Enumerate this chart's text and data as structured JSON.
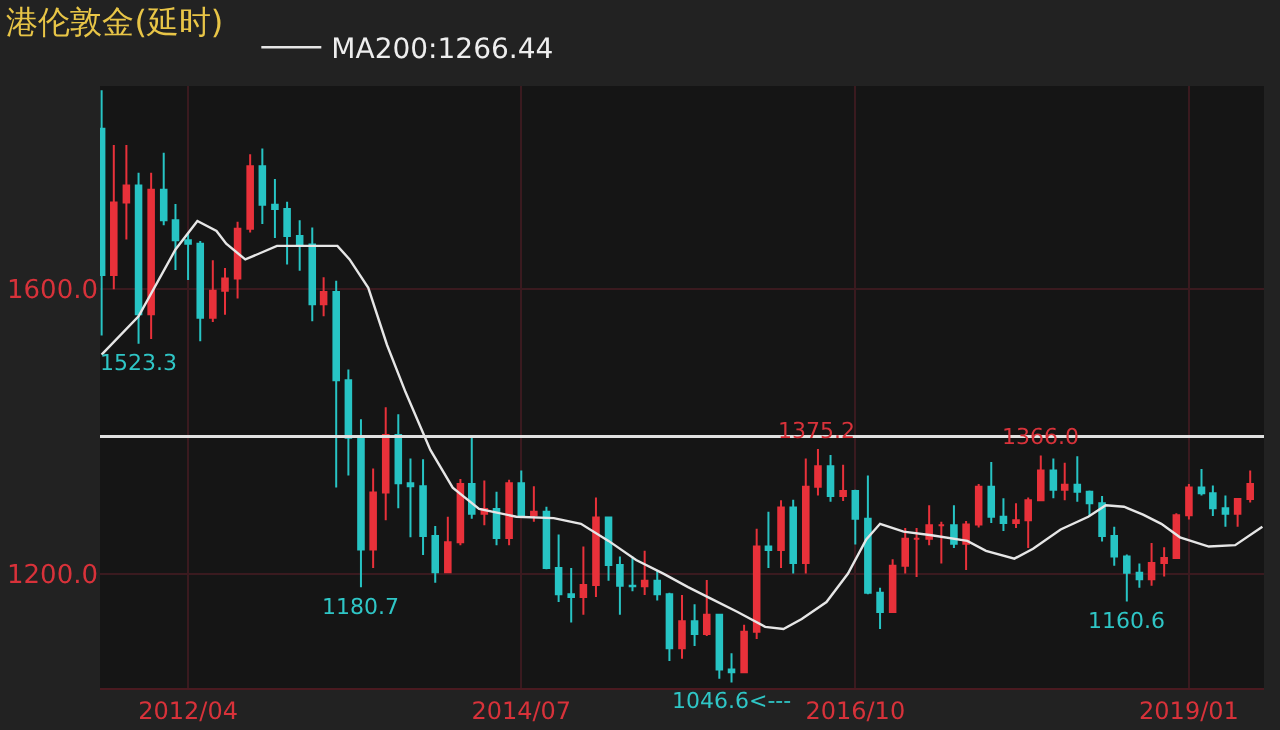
{
  "chart_data": {
    "type": "candlestick",
    "title": "港伦敦金(延时)",
    "x": [
      "2011-09",
      "2011-10",
      "2011-11",
      "2011-12",
      "2012-01",
      "2012-02",
      "2012-03",
      "2012-04",
      "2012-05",
      "2012-06",
      "2012-07",
      "2012-08",
      "2012-09",
      "2012-10",
      "2012-11",
      "2012-12",
      "2013-01",
      "2013-02",
      "2013-03",
      "2013-04",
      "2013-05",
      "2013-06",
      "2013-07",
      "2013-08",
      "2013-09",
      "2013-10",
      "2013-11",
      "2013-12",
      "2014-01",
      "2014-02",
      "2014-03",
      "2014-04",
      "2014-05",
      "2014-06",
      "2014-07",
      "2014-08",
      "2014-09",
      "2014-10",
      "2014-11",
      "2014-12",
      "2015-01",
      "2015-02",
      "2015-03",
      "2015-04",
      "2015-05",
      "2015-06",
      "2015-07",
      "2015-08",
      "2015-09",
      "2015-10",
      "2015-11",
      "2015-12",
      "2016-01",
      "2016-02",
      "2016-03",
      "2016-04",
      "2016-05",
      "2016-06",
      "2016-07",
      "2016-08",
      "2016-09",
      "2016-10",
      "2016-11",
      "2016-12",
      "2017-01",
      "2017-02",
      "2017-03",
      "2017-04",
      "2017-05",
      "2017-06",
      "2017-07",
      "2017-08",
      "2017-09",
      "2017-10",
      "2017-11",
      "2017-12",
      "2018-01",
      "2018-02",
      "2018-03",
      "2018-04",
      "2018-05",
      "2018-06",
      "2018-07",
      "2018-08",
      "2018-09",
      "2018-10",
      "2018-11",
      "2018-12",
      "2019-01",
      "2019-02",
      "2019-03",
      "2019-04",
      "2019-05",
      "2019-06"
    ],
    "ohlc": [
      [
        1826,
        1880,
        1535,
        1620
      ],
      [
        1620,
        1803,
        1600,
        1722
      ],
      [
        1722,
        1803,
        1670,
        1746
      ],
      [
        1746,
        1764,
        1523.3,
        1565
      ],
      [
        1565,
        1764,
        1530,
        1740
      ],
      [
        1740,
        1792,
        1690,
        1697
      ],
      [
        1697,
        1720,
        1627,
        1669
      ],
      [
        1669,
        1680,
        1613,
        1664
      ],
      [
        1664,
        1668,
        1527,
        1560
      ],
      [
        1560,
        1641,
        1554,
        1598
      ],
      [
        1598,
        1630,
        1564,
        1615
      ],
      [
        1615,
        1695,
        1587,
        1685
      ],
      [
        1685,
        1790,
        1680,
        1773
      ],
      [
        1773,
        1798,
        1692,
        1719
      ],
      [
        1719,
        1755,
        1672,
        1713
      ],
      [
        1713,
        1723,
        1635,
        1675
      ],
      [
        1675,
        1697,
        1626,
        1663
      ],
      [
        1663,
        1687,
        1555,
        1579
      ],
      [
        1579,
        1617,
        1562,
        1596
      ],
      [
        1596,
        1612,
        1321,
        1472
      ],
      [
        1472,
        1487,
        1338,
        1391
      ],
      [
        1391,
        1417,
        1180.7,
        1234
      ],
      [
        1234,
        1348,
        1208,
        1314
      ],
      [
        1314,
        1434,
        1275,
        1395
      ],
      [
        1395,
        1424,
        1292,
        1327
      ],
      [
        1327,
        1362,
        1251,
        1323
      ],
      [
        1323,
        1361,
        1226,
        1253
      ],
      [
        1253,
        1267,
        1187,
        1202
      ],
      [
        1202,
        1280,
        1202,
        1244
      ],
      [
        1244,
        1333,
        1240,
        1326
      ],
      [
        1326,
        1392,
        1277,
        1284
      ],
      [
        1284,
        1331,
        1268,
        1291
      ],
      [
        1291,
        1315,
        1240,
        1250
      ],
      [
        1250,
        1332,
        1240,
        1327
      ],
      [
        1327,
        1345,
        1280,
        1282
      ],
      [
        1282,
        1323,
        1273,
        1287
      ],
      [
        1287,
        1294,
        1206,
        1208
      ],
      [
        1208,
        1255,
        1160,
        1171
      ],
      [
        1171,
        1208,
        1131,
        1167
      ],
      [
        1167,
        1238,
        1142,
        1184
      ],
      [
        1184,
        1307,
        1167,
        1279
      ],
      [
        1279,
        1280,
        1190,
        1212
      ],
      [
        1212,
        1224,
        1142,
        1183
      ],
      [
        1183,
        1224,
        1175,
        1182
      ],
      [
        1182,
        1232,
        1170,
        1190
      ],
      [
        1190,
        1205,
        1162,
        1171
      ],
      [
        1171,
        1173,
        1077,
        1095
      ],
      [
        1095,
        1170,
        1080,
        1133
      ],
      [
        1133,
        1157,
        1098,
        1115
      ],
      [
        1115,
        1191,
        1112,
        1142
      ],
      [
        1142,
        1142,
        1052,
        1065
      ],
      [
        1065,
        1088,
        1046.6,
        1061
      ],
      [
        1061,
        1128,
        1061,
        1118
      ],
      [
        1118,
        1263,
        1108,
        1238
      ],
      [
        1238,
        1287,
        1208,
        1233
      ],
      [
        1233,
        1303,
        1208,
        1293
      ],
      [
        1293,
        1304,
        1200,
        1215
      ],
      [
        1215,
        1362,
        1200,
        1322
      ],
      [
        1322,
        1375.2,
        1310,
        1351
      ],
      [
        1351,
        1367,
        1301,
        1309
      ],
      [
        1309,
        1353,
        1302,
        1316
      ],
      [
        1316,
        1318,
        1241,
        1277
      ],
      [
        1277,
        1338,
        1171,
        1173
      ],
      [
        1173,
        1180,
        1122,
        1146
      ],
      [
        1146,
        1220,
        1146,
        1211
      ],
      [
        1211,
        1264,
        1200,
        1249
      ],
      [
        1249,
        1264,
        1195,
        1249
      ],
      [
        1249,
        1296,
        1240,
        1268
      ],
      [
        1268,
        1273,
        1214,
        1268
      ],
      [
        1268,
        1296,
        1236,
        1242
      ],
      [
        1242,
        1274,
        1205,
        1269
      ],
      [
        1269,
        1326,
        1265,
        1322
      ],
      [
        1322,
        1357,
        1271,
        1280
      ],
      [
        1280,
        1306,
        1260,
        1271
      ],
      [
        1271,
        1299,
        1264,
        1275
      ],
      [
        1275,
        1307,
        1236,
        1303
      ],
      [
        1303,
        1366.0,
        1302,
        1345
      ],
      [
        1345,
        1362,
        1306,
        1318
      ],
      [
        1318,
        1356,
        1303,
        1325
      ],
      [
        1325,
        1365,
        1301,
        1315
      ],
      [
        1315,
        1317,
        1282,
        1299
      ],
      [
        1299,
        1309,
        1245,
        1253
      ],
      [
        1253,
        1266,
        1211,
        1224
      ],
      [
        1224,
        1227,
        1160.6,
        1201
      ],
      [
        1201,
        1214,
        1180,
        1192
      ],
      [
        1192,
        1243,
        1183,
        1215
      ],
      [
        1215,
        1237,
        1196,
        1222
      ],
      [
        1222,
        1285,
        1221,
        1282
      ],
      [
        1282,
        1326,
        1276,
        1321
      ],
      [
        1321,
        1347,
        1310,
        1313
      ],
      [
        1313,
        1324,
        1281,
        1292
      ],
      [
        1292,
        1310,
        1266,
        1284
      ],
      [
        1284,
        1305,
        1266,
        1305
      ],
      [
        1305,
        1345,
        1300,
        1326
      ]
    ],
    "colors": [
      "#27c4c4",
      "#e8313a",
      "#e8313a",
      "#27c4c4",
      "#e8313a",
      "#27c4c4",
      "#27c4c4",
      "#27c4c4",
      "#27c4c4",
      "#e8313a",
      "#e8313a",
      "#e8313a",
      "#e8313a",
      "#27c4c4",
      "#27c4c4",
      "#27c4c4",
      "#27c4c4",
      "#27c4c4",
      "#e8313a",
      "#27c4c4",
      "#27c4c4",
      "#27c4c4",
      "#e8313a",
      "#e8313a",
      "#27c4c4",
      "#27c4c4",
      "#27c4c4",
      "#27c4c4",
      "#e8313a",
      "#e8313a",
      "#27c4c4",
      "#e8313a",
      "#27c4c4",
      "#e8313a",
      "#27c4c4",
      "#e8313a",
      "#27c4c4",
      "#27c4c4",
      "#27c4c4",
      "#e8313a",
      "#e8313a",
      "#27c4c4",
      "#27c4c4",
      "#27c4c4",
      "#e8313a",
      "#27c4c4",
      "#27c4c4",
      "#e8313a",
      "#27c4c4",
      "#e8313a",
      "#27c4c4",
      "#27c4c4",
      "#e8313a",
      "#e8313a",
      "#27c4c4",
      "#e8313a",
      "#27c4c4",
      "#e8313a",
      "#e8313a",
      "#27c4c4",
      "#e8313a",
      "#27c4c4",
      "#27c4c4",
      "#27c4c4",
      "#e8313a",
      "#e8313a",
      "#e8313a",
      "#e8313a",
      "#e8313a",
      "#27c4c4",
      "#e8313a",
      "#e8313a",
      "#27c4c4",
      "#27c4c4",
      "#e8313a",
      "#e8313a",
      "#e8313a",
      "#27c4c4",
      "#e8313a",
      "#27c4c4",
      "#27c4c4",
      "#27c4c4",
      "#27c4c4",
      "#27c4c4",
      "#27c4c4",
      "#e8313a",
      "#e8313a",
      "#e8313a",
      "#e8313a",
      "#27c4c4",
      "#27c4c4",
      "#27c4c4",
      "#e8313a",
      "#e8313a"
    ],
    "series": [
      {
        "name": "MA200:1266.44",
        "type": "line",
        "color": "#e6e6e6",
        "x": [
          "2011-09-01",
          "2011-12-01",
          "2012-03-01",
          "2012-04-24",
          "2012-06-10",
          "2012-07-04",
          "2012-08-20",
          "2012-09-22",
          "2012-11-06",
          "2013-02-06",
          "2013-04-04",
          "2013-05-04",
          "2013-06-19",
          "2013-08-04",
          "2013-09-19",
          "2013-11-19",
          "2014-01-13",
          "2014-03-19",
          "2014-06-19",
          "2014-09-19",
          "2014-11-25",
          "2015-02-01",
          "2015-04-10",
          "2015-06-16",
          "2015-08-16",
          "2015-10-10",
          "2015-12-16",
          "2016-02-22",
          "2016-04-07",
          "2016-05-22",
          "2016-07-22",
          "2016-09-13",
          "2016-10-28",
          "2016-12-01",
          "2017-01-28",
          "2017-04-07",
          "2017-07-04",
          "2017-08-19",
          "2017-10-28",
          "2017-12-13",
          "2018-02-19",
          "2018-04-28",
          "2018-06-10",
          "2018-07-25",
          "2018-09-10",
          "2018-10-25",
          "2018-12-10",
          "2019-02-19",
          "2019-04-25",
          "2019-07-01"
        ],
        "values": [
          1508,
          1562,
          1656,
          1696,
          1682,
          1664,
          1642,
          1650,
          1661,
          1661,
          1661,
          1642,
          1602,
          1522,
          1455,
          1374,
          1321,
          1291,
          1280,
          1278,
          1270,
          1246,
          1219,
          1200,
          1181,
          1165,
          1146,
          1125,
          1122,
          1136,
          1160,
          1200,
          1248,
          1270,
          1259,
          1254,
          1246,
          1232,
          1221,
          1235,
          1262,
          1280,
          1296,
          1294,
          1283,
          1270,
          1251,
          1238,
          1240,
          1266
        ]
      }
    ],
    "xlim": [
      "2011-08-28",
      "2019-07-05"
    ],
    "xticks": [
      {
        "value": "2012-04-01",
        "label": "2012/04"
      },
      {
        "value": "2014-07-01",
        "label": "2014/07"
      },
      {
        "value": "2016-10-01",
        "label": "2016/10"
      },
      {
        "value": "2019-01-01",
        "label": "2019/01"
      }
    ],
    "ylim": [
      1039,
      1886
    ],
    "yticks": [
      {
        "value": 1200,
        "label": "1200.0"
      },
      {
        "value": 1600,
        "label": "1600.0"
      }
    ],
    "grid": true,
    "legend": "top left",
    "ref_lines": [
      {
        "axis": "y",
        "value": 1393,
        "color": "#e0e0e0"
      }
    ],
    "annotations": [
      {
        "text": "1523.3",
        "x": "2011-12",
        "y": 1523.3
      },
      {
        "text": "1180.7",
        "x": "2013-06",
        "y": 1180.7
      },
      {
        "text": "1046.6<---",
        "x": "2015-12",
        "y": 1046.6
      },
      {
        "text": "1375.2",
        "x": "2016-07",
        "y": 1375.2
      },
      {
        "text": "1366.0",
        "x": "2018-01",
        "y": 1366.0
      },
      {
        "text": "1160.6",
        "x": "2018-08",
        "y": 1160.6
      }
    ]
  }
}
